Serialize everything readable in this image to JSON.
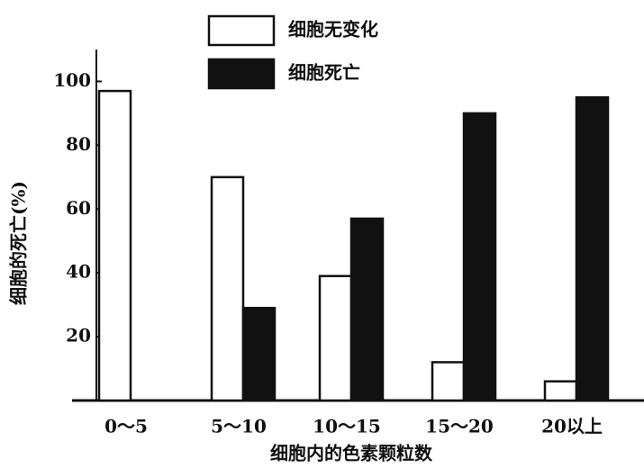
{
  "chart_data": {
    "type": "bar",
    "categories": [
      "0～5",
      "5～10",
      "10～15",
      "15～20",
      "20以上"
    ],
    "series": [
      {
        "name": "细胞无变化",
        "color": "#ffffff",
        "values": [
          97,
          70,
          39,
          12,
          6
        ]
      },
      {
        "name": "细胞死亡",
        "color": "#111111",
        "values": [
          null,
          29,
          57,
          90,
          95
        ]
      }
    ],
    "x_label": "细胞内的色素颗粒数",
    "y_label": "细胞的死亡(%)",
    "ylim": [
      0,
      110
    ],
    "yticks": [
      20,
      40,
      60,
      80,
      100
    ],
    "legend": "top"
  }
}
